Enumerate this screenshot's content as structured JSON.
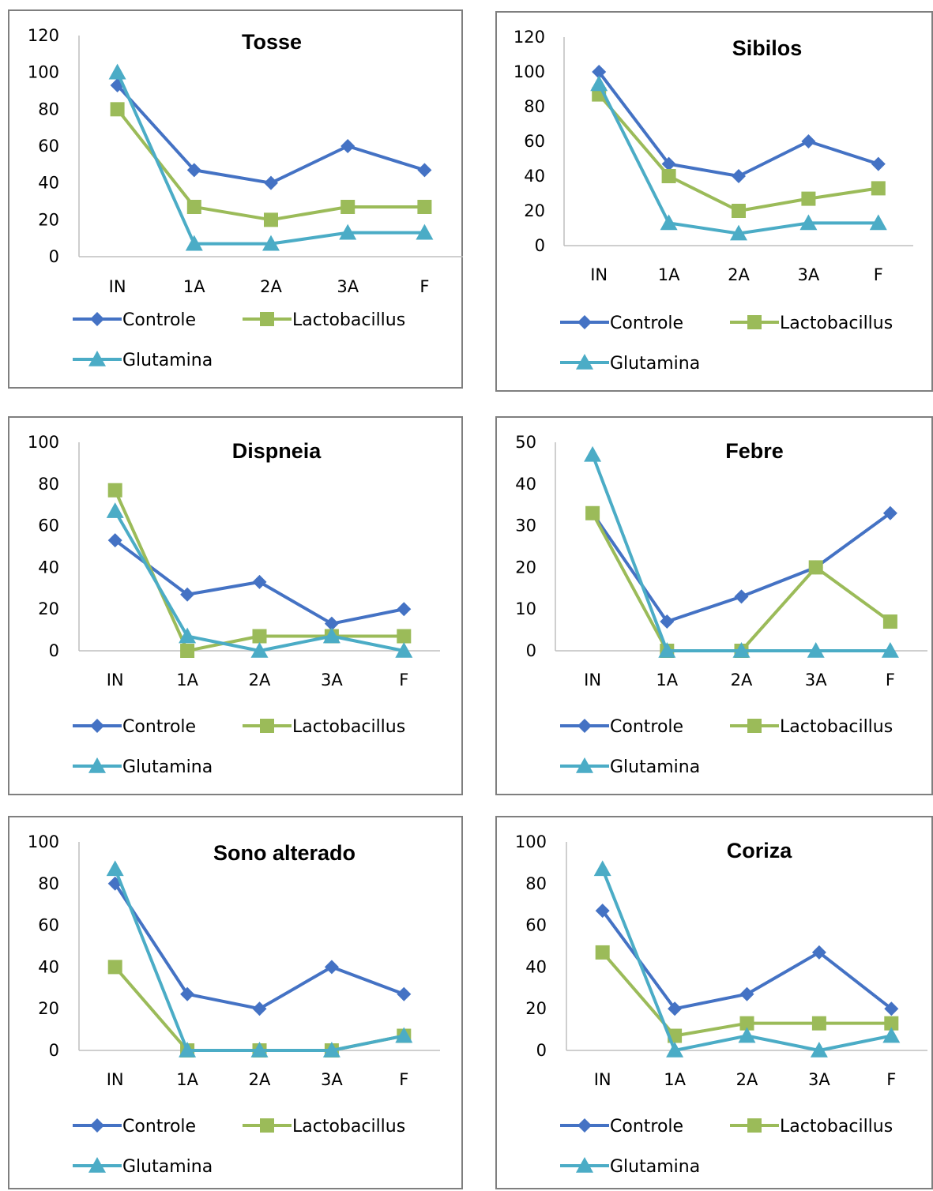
{
  "colors": {
    "Controle": "#4472c4",
    "Lactobacillus": "#9bbb59",
    "Glutamina": "#4bacc6"
  },
  "chart_data": [
    {
      "type": "line",
      "title": "Tosse",
      "categories": [
        "IN",
        "1A",
        "2A",
        "3A",
        "F"
      ],
      "ylim": [
        0,
        120
      ],
      "yticks": [
        0,
        20,
        40,
        60,
        80,
        100,
        120
      ],
      "series": [
        {
          "name": "Controle",
          "marker": "diamond",
          "values": [
            93,
            47,
            40,
            60,
            47
          ]
        },
        {
          "name": "Lactobacillus",
          "marker": "square",
          "values": [
            80,
            27,
            20,
            27,
            27
          ]
        },
        {
          "name": "Glutamina",
          "marker": "triangle",
          "values": [
            100,
            7,
            7,
            13,
            13
          ]
        }
      ],
      "legend": "bottom"
    },
    {
      "type": "line",
      "title": "Sibilos",
      "categories": [
        "IN",
        "1A",
        "2A",
        "3A",
        "F"
      ],
      "ylim": [
        0,
        120
      ],
      "yticks": [
        0,
        20,
        40,
        60,
        80,
        100,
        120
      ],
      "series": [
        {
          "name": "Controle",
          "marker": "diamond",
          "values": [
            100,
            47,
            40,
            60,
            47
          ]
        },
        {
          "name": "Lactobacillus",
          "marker": "square",
          "values": [
            87,
            40,
            20,
            27,
            33
          ]
        },
        {
          "name": "Glutamina",
          "marker": "triangle",
          "values": [
            93,
            13,
            7,
            13,
            13
          ]
        }
      ],
      "legend": "bottom"
    },
    {
      "type": "line",
      "title": "Dispneia",
      "categories": [
        "IN",
        "1A",
        "2A",
        "3A",
        "F"
      ],
      "ylim": [
        0,
        100
      ],
      "yticks": [
        0,
        20,
        40,
        60,
        80,
        100
      ],
      "series": [
        {
          "name": "Controle",
          "marker": "diamond",
          "values": [
            53,
            27,
            33,
            13,
            20
          ]
        },
        {
          "name": "Lactobacillus",
          "marker": "square",
          "values": [
            77,
            0,
            7,
            7,
            7
          ]
        },
        {
          "name": "Glutamina",
          "marker": "triangle",
          "values": [
            67,
            7,
            0,
            7,
            0
          ]
        }
      ],
      "legend": "bottom"
    },
    {
      "type": "line",
      "title": "Febre",
      "categories": [
        "IN",
        "1A",
        "2A",
        "3A",
        "F"
      ],
      "ylim": [
        0,
        50
      ],
      "yticks": [
        0,
        10,
        20,
        30,
        40,
        50
      ],
      "series": [
        {
          "name": "Controle",
          "marker": "diamond",
          "values": [
            33,
            7,
            13,
            20,
            33
          ]
        },
        {
          "name": "Lactobacillus",
          "marker": "square",
          "values": [
            33,
            0,
            0,
            20,
            7
          ]
        },
        {
          "name": "Glutamina",
          "marker": "triangle",
          "values": [
            47,
            0,
            0,
            0,
            0
          ]
        }
      ],
      "legend": "bottom"
    },
    {
      "type": "line",
      "title": "Sono alterado",
      "categories": [
        "IN",
        "1A",
        "2A",
        "3A",
        "F"
      ],
      "ylim": [
        0,
        100
      ],
      "yticks": [
        0,
        20,
        40,
        60,
        80,
        100
      ],
      "series": [
        {
          "name": "Controle",
          "marker": "diamond",
          "values": [
            80,
            27,
            20,
            40,
            27
          ]
        },
        {
          "name": "Lactobacillus",
          "marker": "square",
          "values": [
            40,
            0,
            0,
            0,
            7
          ]
        },
        {
          "name": "Glutamina",
          "marker": "triangle",
          "values": [
            87,
            0,
            0,
            0,
            7
          ]
        }
      ],
      "legend": "bottom"
    },
    {
      "type": "line",
      "title": "Coriza",
      "categories": [
        "IN",
        "1A",
        "2A",
        "3A",
        "F"
      ],
      "ylim": [
        0,
        100
      ],
      "yticks": [
        0,
        20,
        40,
        60,
        80,
        100
      ],
      "series": [
        {
          "name": "Controle",
          "marker": "diamond",
          "values": [
            67,
            20,
            27,
            47,
            20
          ]
        },
        {
          "name": "Lactobacillus",
          "marker": "square",
          "values": [
            47,
            7,
            13,
            13,
            13
          ]
        },
        {
          "name": "Glutamina",
          "marker": "triangle",
          "values": [
            87,
            0,
            7,
            0,
            7
          ]
        }
      ],
      "legend": "bottom"
    }
  ]
}
